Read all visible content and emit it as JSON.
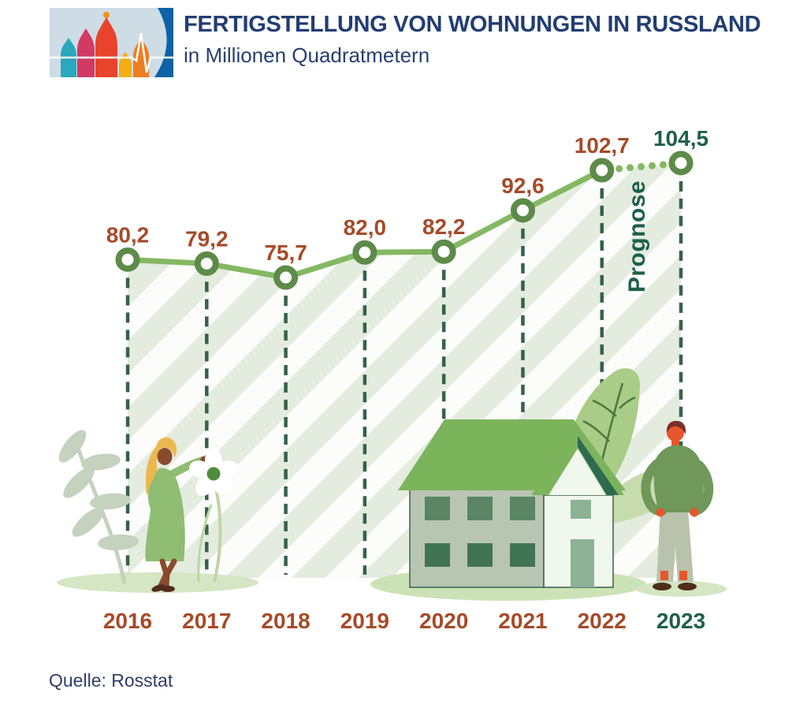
{
  "header": {
    "title": "FERTIGSTELLUNG VON WOHNUNGEN IN RUSSLAND",
    "subtitle": "in Millionen Quadratmetern",
    "logo_icon": "st-basils-cathedral-pulse-logo"
  },
  "chart_data": {
    "type": "line",
    "title": "FERTIGSTELLUNG VON WOHNUNGEN IN RUSSLAND",
    "subtitle": "in Millionen Quadratmetern",
    "unit": "Millionen Quadratmeter",
    "categories": [
      "2016",
      "2017",
      "2018",
      "2019",
      "2020",
      "2021",
      "2022",
      "2023"
    ],
    "values": [
      80.2,
      79.2,
      75.7,
      82.0,
      82.2,
      92.6,
      102.7,
      104.5
    ],
    "value_labels": [
      "80,2",
      "79,2",
      "75,7",
      "82,0",
      "82,2",
      "92,6",
      "102,7",
      "104,5"
    ],
    "forecast_index": 7,
    "forecast_label": "Prognose",
    "grid": false,
    "legend_position": "none",
    "ylim": [
      70,
      110
    ],
    "colors": {
      "line": "#84b862",
      "marker_ring": "#5d8b49",
      "marker_fill": "#ffffff",
      "dashed_dropline": "#35624a",
      "value_label": "#a64a28",
      "forecast_label_color": "#1e6049",
      "stripe_green": "#e3ecdf",
      "stripe_light": "#fcfdfb"
    }
  },
  "source": {
    "label": "Quelle: Rosstat"
  }
}
